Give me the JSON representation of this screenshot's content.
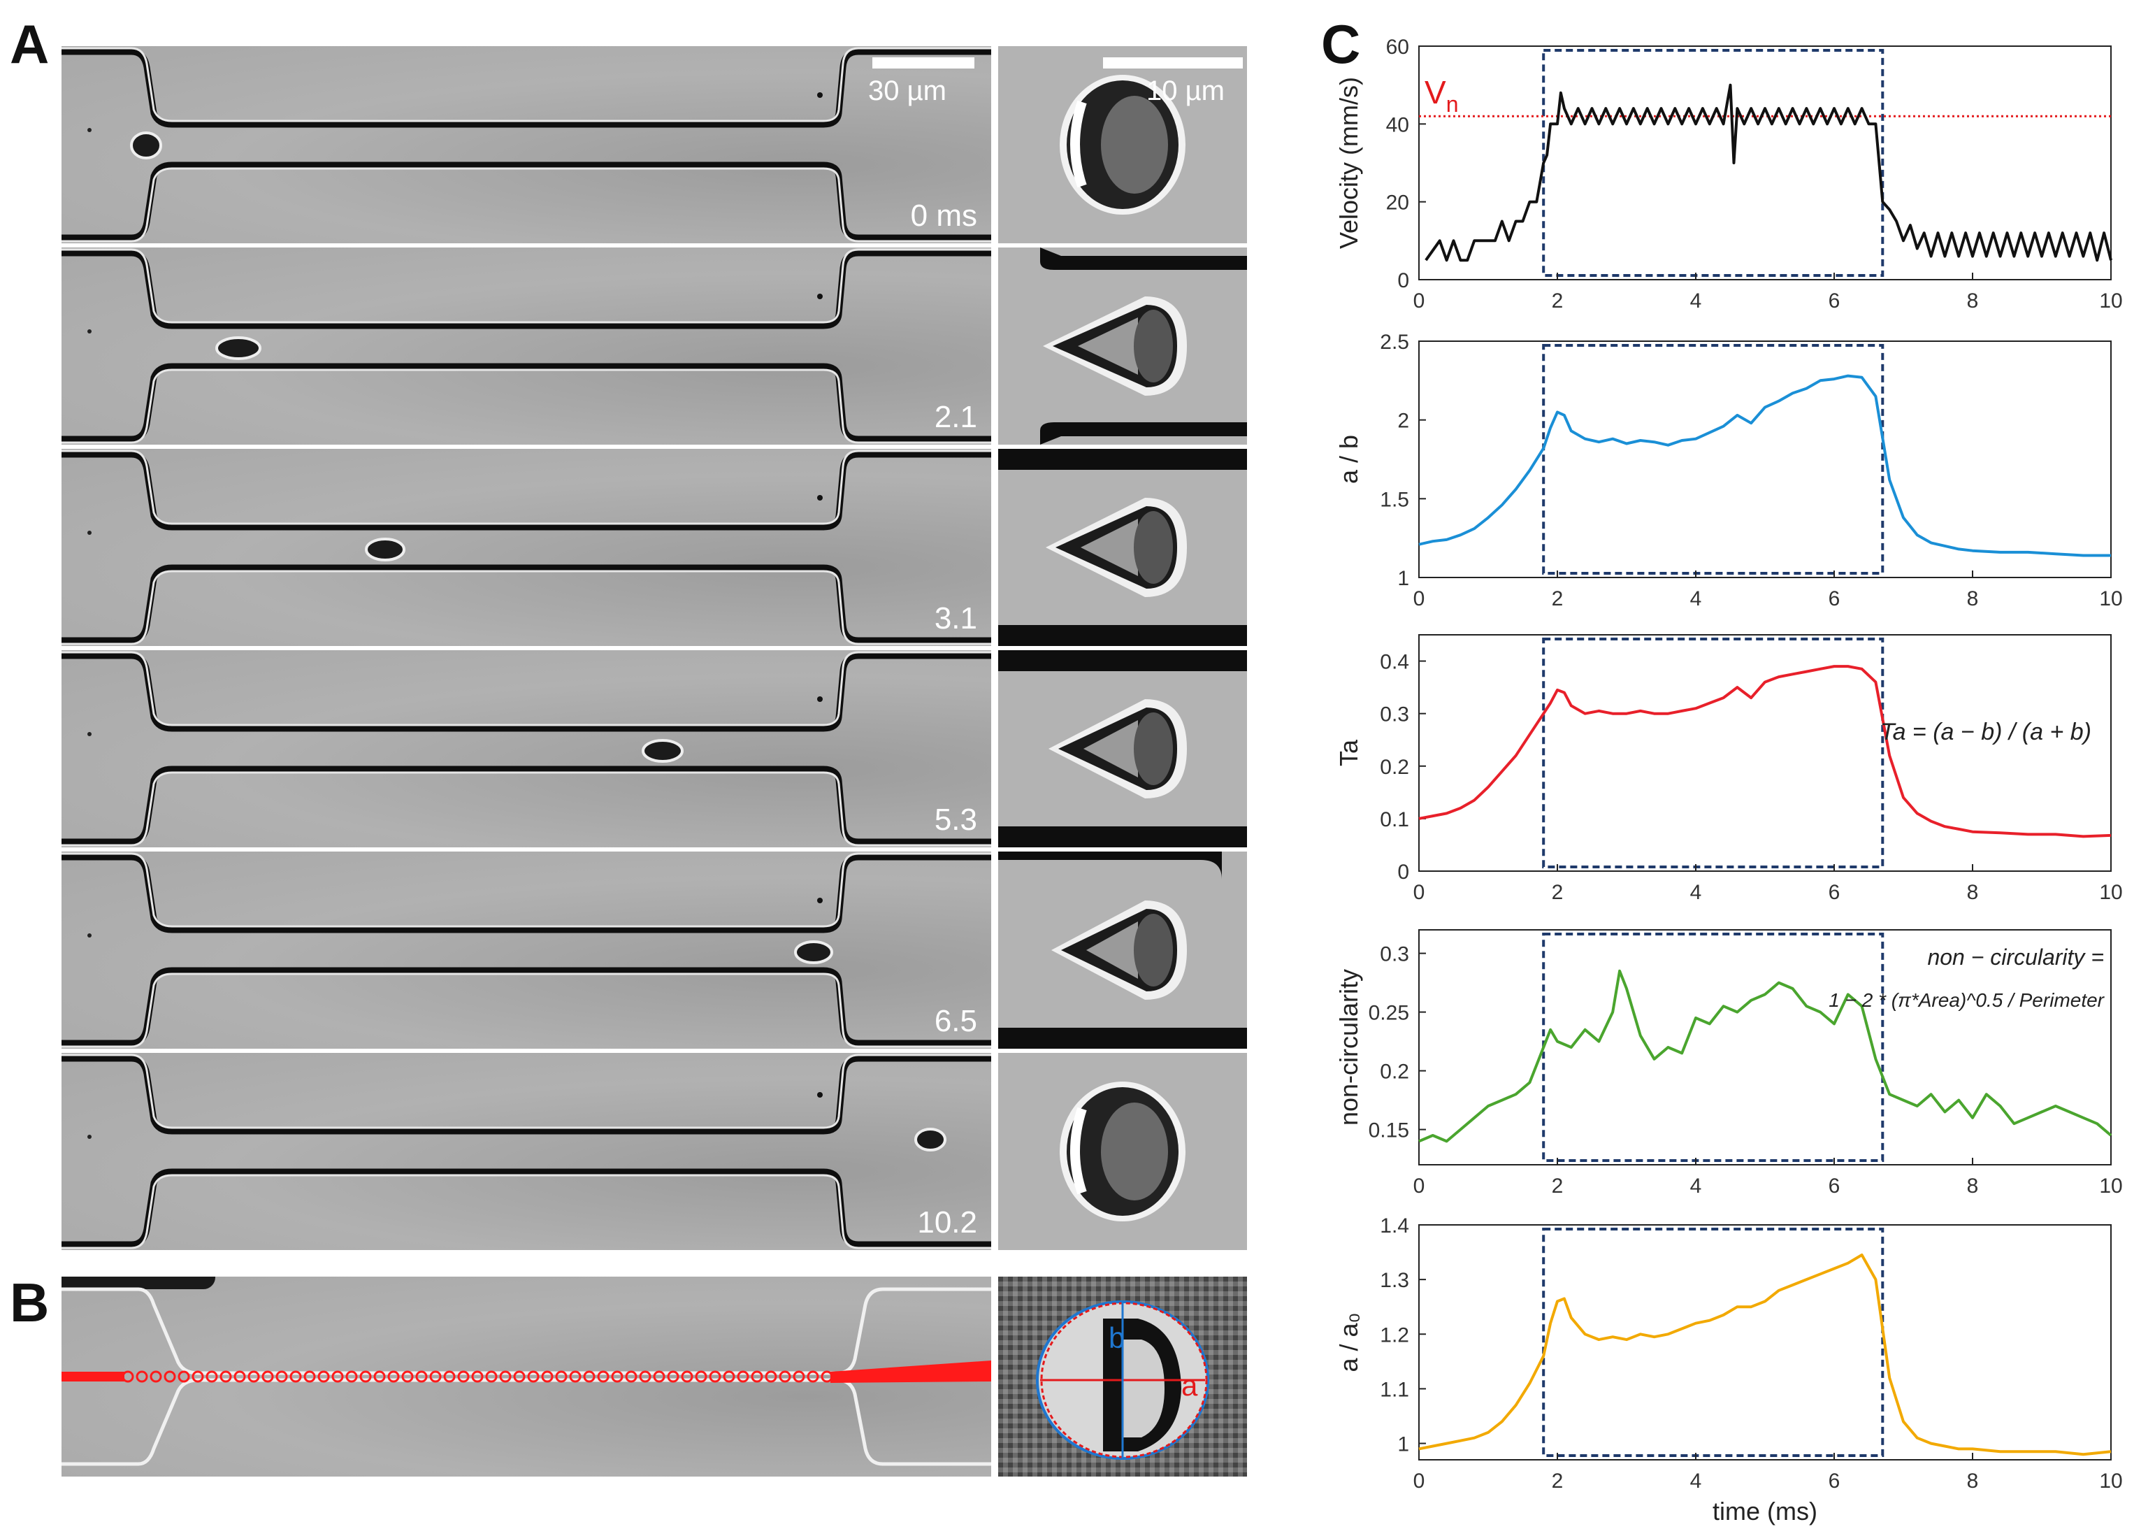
{
  "panels": {
    "A": "A",
    "B": "B",
    "C": "C"
  },
  "panelA": {
    "scale_main": "30 µm",
    "scale_zoom": "10 µm",
    "frames": [
      {
        "time": "0 ms"
      },
      {
        "time": "2.1"
      },
      {
        "time": "3.1"
      },
      {
        "time": "5.3"
      },
      {
        "time": "6.5"
      },
      {
        "time": "10.2"
      }
    ]
  },
  "panelB": {
    "label_a": "a",
    "label_b": "b"
  },
  "chart_data": [
    {
      "type": "line",
      "ylabel": "Velocity (mm/s)",
      "xlabel": "",
      "xlim": [
        0,
        10
      ],
      "ylim": [
        0,
        60
      ],
      "yticks": [
        0,
        20,
        40,
        60
      ],
      "xticks": [
        0,
        2,
        4,
        6,
        8,
        10
      ],
      "color": "#111111",
      "annotation": "V",
      "annotation_sub": "n",
      "annotation_color": "#e31a1c",
      "reference_line_y": 42,
      "shaded_window_ms": [
        1.8,
        6.7
      ],
      "x": [
        0.1,
        0.3,
        0.4,
        0.5,
        0.6,
        0.7,
        0.8,
        0.9,
        1.0,
        1.1,
        1.2,
        1.3,
        1.4,
        1.5,
        1.6,
        1.7,
        1.8,
        1.85,
        1.9,
        2.0,
        2.05,
        2.1,
        2.2,
        2.3,
        2.4,
        2.5,
        2.6,
        2.7,
        2.8,
        2.9,
        3.0,
        3.1,
        3.2,
        3.3,
        3.4,
        3.5,
        3.6,
        3.7,
        3.8,
        3.9,
        4.0,
        4.1,
        4.2,
        4.3,
        4.4,
        4.5,
        4.55,
        4.6,
        4.7,
        4.8,
        4.9,
        5.0,
        5.1,
        5.2,
        5.3,
        5.4,
        5.5,
        5.6,
        5.7,
        5.8,
        5.9,
        6.0,
        6.1,
        6.2,
        6.3,
        6.4,
        6.5,
        6.6,
        6.7,
        6.8,
        6.9,
        7.0,
        7.1,
        7.2,
        7.3,
        7.4,
        7.5,
        7.6,
        7.7,
        7.8,
        7.9,
        8.0,
        8.1,
        8.2,
        8.3,
        8.4,
        8.5,
        8.6,
        8.7,
        8.8,
        8.9,
        9.0,
        9.1,
        9.2,
        9.3,
        9.4,
        9.5,
        9.6,
        9.7,
        9.8,
        9.9,
        10.0
      ],
      "values": [
        5,
        10,
        5,
        10,
        5,
        5,
        10,
        10,
        10,
        10,
        15,
        10,
        15,
        15,
        20,
        20,
        30,
        32,
        40,
        40,
        48,
        44,
        40,
        44,
        40,
        44,
        40,
        44,
        40,
        44,
        40,
        44,
        40,
        44,
        40,
        44,
        40,
        44,
        40,
        44,
        40,
        44,
        40,
        44,
        40,
        50,
        30,
        44,
        40,
        44,
        40,
        44,
        40,
        44,
        40,
        44,
        40,
        44,
        40,
        44,
        40,
        44,
        40,
        44,
        40,
        44,
        40,
        40,
        20,
        18,
        15,
        10,
        14,
        8,
        12,
        6,
        12,
        6,
        12,
        6,
        12,
        6,
        12,
        6,
        12,
        6,
        12,
        6,
        12,
        6,
        12,
        6,
        12,
        6,
        12,
        6,
        12,
        6,
        12,
        5,
        12,
        5
      ]
    },
    {
      "type": "line",
      "ylabel": "a / b",
      "xlabel": "",
      "xlim": [
        0,
        10
      ],
      "ylim": [
        1,
        2.5
      ],
      "yticks": [
        1,
        1.5,
        2,
        2.5
      ],
      "xticks": [
        0,
        2,
        4,
        6,
        8,
        10
      ],
      "color": "#1a8fd6",
      "shaded_window_ms": [
        1.8,
        6.7
      ],
      "x": [
        0,
        0.2,
        0.4,
        0.6,
        0.8,
        1.0,
        1.2,
        1.4,
        1.6,
        1.8,
        1.9,
        2.0,
        2.1,
        2.2,
        2.4,
        2.6,
        2.8,
        3.0,
        3.2,
        3.4,
        3.6,
        3.8,
        4.0,
        4.2,
        4.4,
        4.6,
        4.8,
        5.0,
        5.2,
        5.4,
        5.6,
        5.8,
        6.0,
        6.2,
        6.4,
        6.6,
        6.8,
        7.0,
        7.2,
        7.4,
        7.6,
        7.8,
        8.0,
        8.4,
        8.8,
        9.2,
        9.6,
        10.0
      ],
      "values": [
        1.21,
        1.23,
        1.24,
        1.27,
        1.31,
        1.38,
        1.46,
        1.56,
        1.68,
        1.82,
        1.95,
        2.05,
        2.03,
        1.93,
        1.88,
        1.86,
        1.88,
        1.85,
        1.87,
        1.86,
        1.84,
        1.87,
        1.88,
        1.92,
        1.96,
        2.03,
        1.98,
        2.08,
        2.12,
        2.17,
        2.2,
        2.25,
        2.26,
        2.28,
        2.27,
        2.15,
        1.62,
        1.38,
        1.27,
        1.22,
        1.2,
        1.18,
        1.17,
        1.16,
        1.16,
        1.15,
        1.14,
        1.14
      ]
    },
    {
      "type": "line",
      "ylabel": "Ta",
      "xlabel": "",
      "xlim": [
        0,
        10
      ],
      "ylim": [
        0,
        0.45
      ],
      "yticks": [
        0,
        0.1,
        0.2,
        0.3,
        0.4
      ],
      "xticks": [
        0,
        2,
        4,
        6,
        8,
        10
      ],
      "color": "#e8202a",
      "formula": "Ta = (a − b) / (a + b)",
      "shaded_window_ms": [
        1.8,
        6.7
      ],
      "x": [
        0,
        0.2,
        0.4,
        0.6,
        0.8,
        1.0,
        1.2,
        1.4,
        1.6,
        1.8,
        1.9,
        2.0,
        2.1,
        2.2,
        2.4,
        2.6,
        2.8,
        3.0,
        3.2,
        3.4,
        3.6,
        3.8,
        4.0,
        4.2,
        4.4,
        4.6,
        4.8,
        5.0,
        5.2,
        5.4,
        5.6,
        5.8,
        6.0,
        6.2,
        6.4,
        6.6,
        6.8,
        7.0,
        7.2,
        7.4,
        7.6,
        7.8,
        8.0,
        8.4,
        8.8,
        9.2,
        9.6,
        10.0
      ],
      "values": [
        0.1,
        0.105,
        0.11,
        0.12,
        0.135,
        0.16,
        0.19,
        0.22,
        0.26,
        0.3,
        0.32,
        0.345,
        0.34,
        0.315,
        0.3,
        0.305,
        0.3,
        0.3,
        0.305,
        0.3,
        0.3,
        0.305,
        0.31,
        0.32,
        0.33,
        0.35,
        0.33,
        0.36,
        0.37,
        0.375,
        0.38,
        0.385,
        0.39,
        0.39,
        0.385,
        0.36,
        0.22,
        0.14,
        0.11,
        0.095,
        0.085,
        0.08,
        0.075,
        0.073,
        0.07,
        0.07,
        0.066,
        0.068
      ]
    },
    {
      "type": "line",
      "ylabel": "non-circularity",
      "xlabel": "",
      "xlim": [
        0,
        10
      ],
      "ylim": [
        0.12,
        0.32
      ],
      "yticks": [
        0.15,
        0.2,
        0.25,
        0.3
      ],
      "xticks": [
        0,
        2,
        4,
        6,
        8,
        10
      ],
      "color": "#4aa52e",
      "formula_line1": "non − circularity =",
      "formula_line2": "1 − 2 * (π*Area)^0.5 / Perimeter",
      "shaded_window_ms": [
        1.8,
        6.7
      ],
      "x": [
        0,
        0.2,
        0.4,
        0.6,
        0.8,
        1.0,
        1.2,
        1.4,
        1.6,
        1.8,
        1.9,
        2.0,
        2.2,
        2.4,
        2.6,
        2.8,
        2.9,
        3.0,
        3.2,
        3.4,
        3.6,
        3.8,
        4.0,
        4.2,
        4.4,
        4.6,
        4.8,
        5.0,
        5.2,
        5.4,
        5.6,
        5.8,
        6.0,
        6.2,
        6.4,
        6.6,
        6.8,
        7.0,
        7.2,
        7.4,
        7.6,
        7.8,
        8.0,
        8.2,
        8.4,
        8.6,
        8.8,
        9.0,
        9.2,
        9.4,
        9.6,
        9.8,
        10.0
      ],
      "values": [
        0.14,
        0.145,
        0.14,
        0.15,
        0.16,
        0.17,
        0.175,
        0.18,
        0.19,
        0.22,
        0.235,
        0.225,
        0.22,
        0.235,
        0.225,
        0.25,
        0.285,
        0.27,
        0.23,
        0.21,
        0.22,
        0.215,
        0.245,
        0.24,
        0.255,
        0.25,
        0.26,
        0.265,
        0.275,
        0.27,
        0.255,
        0.25,
        0.24,
        0.265,
        0.255,
        0.21,
        0.18,
        0.175,
        0.17,
        0.18,
        0.165,
        0.175,
        0.16,
        0.18,
        0.17,
        0.155,
        0.16,
        0.165,
        0.17,
        0.165,
        0.16,
        0.155,
        0.145
      ]
    },
    {
      "type": "line",
      "ylabel": "a / a₀",
      "xlabel": "time (ms)",
      "xlim": [
        0,
        10
      ],
      "ylim": [
        0.97,
        1.4
      ],
      "yticks": [
        1,
        1.1,
        1.2,
        1.3,
        1.4
      ],
      "xticks": [
        0,
        2,
        4,
        6,
        8,
        10
      ],
      "color": "#f2a900",
      "shaded_window_ms": [
        1.8,
        6.7
      ],
      "x": [
        0,
        0.2,
        0.4,
        0.6,
        0.8,
        1.0,
        1.2,
        1.4,
        1.6,
        1.8,
        1.9,
        2.0,
        2.1,
        2.2,
        2.4,
        2.6,
        2.8,
        3.0,
        3.2,
        3.4,
        3.6,
        3.8,
        4.0,
        4.2,
        4.4,
        4.6,
        4.8,
        5.0,
        5.2,
        5.4,
        5.6,
        5.8,
        6.0,
        6.2,
        6.4,
        6.6,
        6.8,
        7.0,
        7.2,
        7.4,
        7.6,
        7.8,
        8.0,
        8.4,
        8.8,
        9.2,
        9.6,
        10.0
      ],
      "values": [
        0.99,
        0.995,
        1.0,
        1.005,
        1.01,
        1.02,
        1.04,
        1.07,
        1.11,
        1.16,
        1.22,
        1.26,
        1.265,
        1.23,
        1.2,
        1.19,
        1.195,
        1.19,
        1.2,
        1.195,
        1.2,
        1.21,
        1.22,
        1.225,
        1.235,
        1.25,
        1.25,
        1.26,
        1.28,
        1.29,
        1.3,
        1.31,
        1.32,
        1.33,
        1.345,
        1.3,
        1.12,
        1.04,
        1.01,
        1.0,
        0.995,
        0.99,
        0.99,
        0.985,
        0.985,
        0.985,
        0.98,
        0.985
      ]
    }
  ]
}
